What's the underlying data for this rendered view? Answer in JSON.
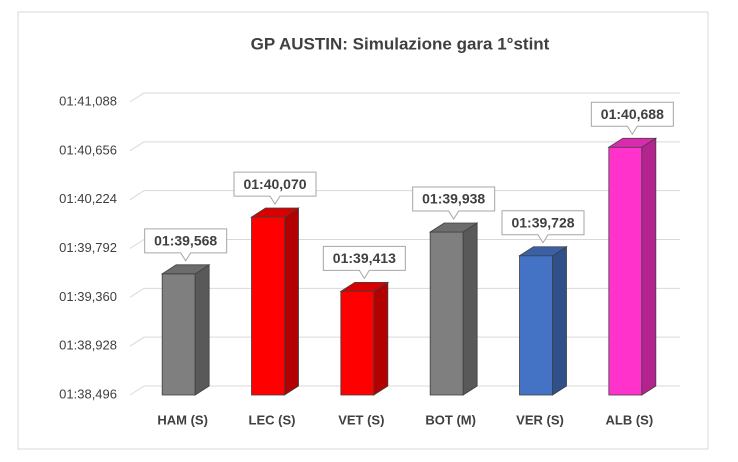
{
  "chart_data": {
    "type": "bar3d",
    "title": "GP AUSTIN: Simulazione gara 1°stint",
    "categories": [
      "HAM (S)",
      "LEC (S)",
      "VET (S)",
      "BOT (M)",
      "VER (S)",
      "ALB (S)"
    ],
    "values": [
      99.568,
      100.07,
      99.413,
      99.938,
      99.728,
      100.688
    ],
    "value_labels": [
      "01:39,568",
      "01:40,070",
      "01:39,413",
      "01:39,938",
      "01:39,728",
      "01:40,688"
    ],
    "colors": [
      "#7f7f7f",
      "#ff0000",
      "#ff0000",
      "#7f7f7f",
      "#4472c4",
      "#ff33cc"
    ],
    "ylim": [
      98.496,
      101.088
    ],
    "yticks": [
      {
        "value": 98.496,
        "label": "01:38,496"
      },
      {
        "value": 98.928,
        "label": "01:38,928"
      },
      {
        "value": 99.36,
        "label": "01:39,360"
      },
      {
        "value": 99.792,
        "label": "01:39,792"
      },
      {
        "value": 100.224,
        "label": "01:40,224"
      },
      {
        "value": 100.656,
        "label": "01:40,656"
      },
      {
        "value": 101.088,
        "label": "01:41,088"
      }
    ],
    "grid": true
  }
}
